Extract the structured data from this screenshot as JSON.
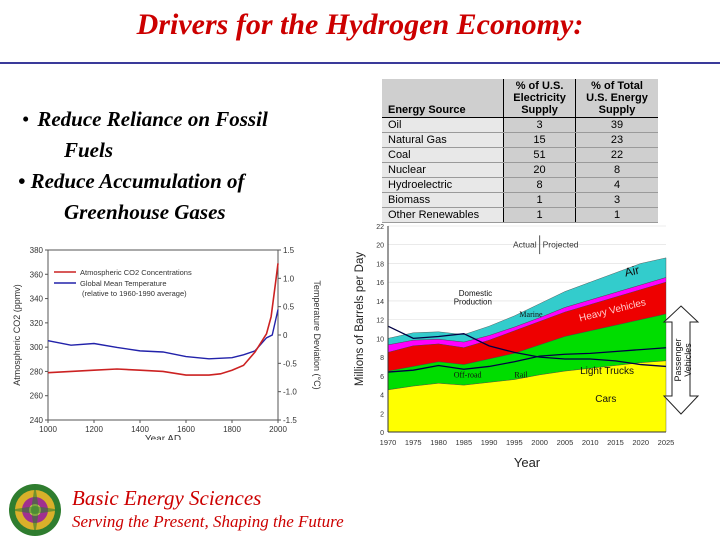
{
  "slide": {
    "title": "Drivers for the Hydrogen Economy:",
    "bullets": [
      {
        "marker": "•",
        "line1": "Reduce Reliance on Fossil",
        "line2": "Fuels"
      },
      {
        "marker": "•",
        "line1": "Reduce Accumulation of",
        "line2": "Greenhouse Gases"
      }
    ],
    "footer": {
      "title": "Basic Energy Sciences",
      "subtitle": "Serving the Present, Shaping the Future"
    }
  },
  "energy_table": {
    "headers": [
      "Energy Source",
      "% of U.S. Electricity Supply",
      "% of Total U.S. Energy Supply"
    ],
    "header_lines": [
      [
        "% of U.S.",
        "Electricity",
        "Supply"
      ],
      [
        "% of Total",
        "U.S. Energy",
        "Supply"
      ]
    ],
    "rows": [
      {
        "source": "Oil",
        "electricity": "3",
        "total": "39"
      },
      {
        "source": "Natural Gas",
        "electricity": "15",
        "total": "23"
      },
      {
        "source": "Coal",
        "electricity": "51",
        "total": "22"
      },
      {
        "source": "Nuclear",
        "electricity": "20",
        "total": "8"
      },
      {
        "source": "Hydroelectric",
        "electricity": "8",
        "total": "4"
      },
      {
        "source": "Biomass",
        "electricity": "1",
        "total": "3"
      },
      {
        "source": "Other Renewables",
        "electricity": "1",
        "total": "1"
      }
    ]
  },
  "chart_data": [
    {
      "type": "line",
      "xlabel": "Year AD",
      "ylabel_left": "Atmospheric CO2 (ppmv)",
      "ylabel_right": "Temperature Deviation (°C)",
      "xlim": [
        1000,
        2000
      ],
      "ylim_left": [
        240,
        380
      ],
      "ylim_right": [
        -1.5,
        1.5
      ],
      "x_ticks": [
        "1000",
        "1200",
        "1400",
        "1600",
        "1800",
        "2000"
      ],
      "y_ticks_left": [
        "240",
        "260",
        "280",
        "300",
        "320",
        "340",
        "360",
        "380"
      ],
      "y_ticks_right": [
        "-1.5",
        "-1.0",
        "-0.5",
        "0",
        "0.5",
        "1.0",
        "1.5"
      ],
      "legend": [
        "Atmospheric CO2 Concentrations",
        "Global Mean Temperature",
        "(relative to 1960-1990 average)"
      ],
      "series": [
        {
          "name": "Atmospheric CO2 Concentrations",
          "color": "#cc2222",
          "x": [
            1000,
            1100,
            1200,
            1300,
            1400,
            1500,
            1600,
            1700,
            1750,
            1800,
            1850,
            1900,
            1950,
            1970,
            1990,
            2000
          ],
          "values": [
            279,
            280,
            281,
            282,
            281,
            280,
            277,
            277,
            278,
            281,
            285,
            296,
            311,
            325,
            354,
            369
          ]
        },
        {
          "name": "Global Mean Temperature",
          "color": "#2222aa",
          "axis": "right",
          "x": [
            1000,
            1100,
            1200,
            1300,
            1400,
            1500,
            1600,
            1700,
            1800,
            1850,
            1900,
            1950,
            1975,
            2000
          ],
          "values": [
            -0.1,
            -0.18,
            -0.15,
            -0.22,
            -0.28,
            -0.3,
            -0.38,
            -0.42,
            -0.4,
            -0.35,
            -0.28,
            -0.05,
            0.0,
            0.45
          ]
        }
      ]
    },
    {
      "type": "area",
      "ylabel": "Millions of Barrels per Day",
      "xlabel": "Year",
      "xlim": [
        1970,
        2025
      ],
      "ylim": [
        0,
        22
      ],
      "x_ticks": [
        "1970",
        "1975",
        "1980",
        "1985",
        "1990",
        "1995",
        "2000",
        "2005",
        "2010",
        "2015",
        "2020",
        "2025"
      ],
      "y_ticks": [
        "0",
        "2",
        "4",
        "6",
        "8",
        "10",
        "12",
        "14",
        "16",
        "18",
        "20",
        "22"
      ],
      "x": [
        1970,
        1975,
        1980,
        1985,
        1990,
        1995,
        2000,
        2005,
        2010,
        2015,
        2020,
        2025
      ],
      "series": [
        {
          "name": "Cars",
          "color": "#ffff00",
          "values": [
            4.5,
            4.9,
            5.2,
            5.0,
            5.3,
            5.6,
            6.1,
            6.5,
            6.8,
            7.1,
            7.4,
            7.6
          ]
        },
        {
          "name": "Light Trucks",
          "color": "#00dd00",
          "values": [
            6.5,
            7.0,
            7.5,
            7.2,
            7.8,
            8.4,
            9.3,
            10.2,
            10.8,
            11.4,
            12.0,
            12.6
          ]
        },
        {
          "name": "Heavy Vehicles",
          "color": "#ee0000",
          "values": [
            8.5,
            9.2,
            9.4,
            9.0,
            9.8,
            10.8,
            11.8,
            12.8,
            13.6,
            14.4,
            15.2,
            16.0
          ]
        },
        {
          "name": "Marine",
          "color": "#ff00ff",
          "values": [
            9.3,
            9.8,
            9.9,
            9.6,
            10.3,
            11.2,
            12.2,
            13.3,
            14.1,
            14.9,
            15.7,
            16.5
          ]
        },
        {
          "name": "Air",
          "color": "#33cccc",
          "values": [
            10.0,
            10.6,
            10.7,
            10.4,
            11.3,
            12.4,
            13.7,
            15.0,
            16.0,
            17.0,
            18.0,
            18.6
          ]
        }
      ],
      "overlay_lines": [
        {
          "name": "Domestic Production",
          "x": [
            1970,
            1975,
            1980,
            1985,
            1990,
            1995,
            2000,
            2005,
            2010,
            2015,
            2020,
            2025
          ],
          "values": [
            11.3,
            10.0,
            10.2,
            10.5,
            9.2,
            8.5,
            8.0,
            7.8,
            7.8,
            7.6,
            7.2,
            7.0
          ]
        },
        {
          "name": "Rail",
          "x": [
            1970,
            1975,
            1980,
            1985,
            1990,
            1995,
            2000,
            2005,
            2010,
            2015,
            2020,
            2025
          ],
          "values": [
            6.4,
            6.6,
            7.1,
            6.7,
            7.0,
            7.5,
            8.1,
            8.3,
            8.4,
            8.6,
            8.8,
            9.0
          ]
        }
      ],
      "period_labels": [
        "Actual",
        "Projected"
      ],
      "series_labels": {
        "air": "Air",
        "heavy": "Heavy Vehicles",
        "marine": "Marine",
        "domestic": "Domestic Production",
        "offroad": "Off-road",
        "rail": "Rail",
        "light_trucks": "Light Trucks",
        "cars": "Cars"
      },
      "arrow_label": "Passenger Vehicles"
    }
  ]
}
